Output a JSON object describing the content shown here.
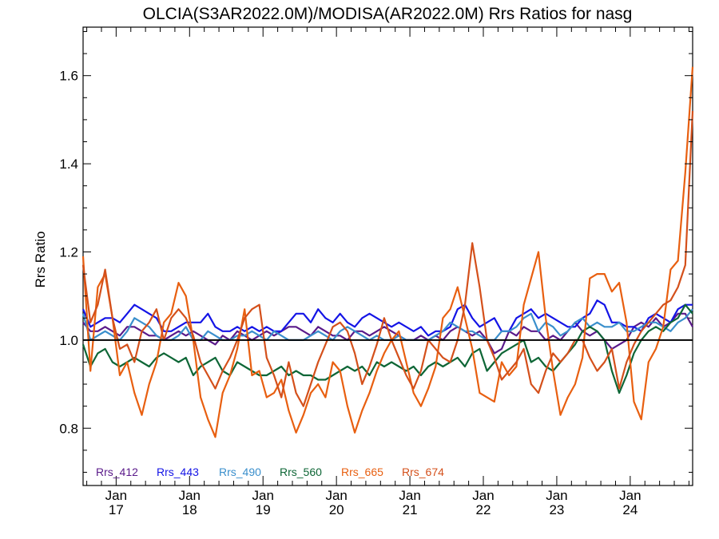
{
  "chart_data": {
    "type": "line",
    "title": "OLCIA(S3AR2022.0M)/MODISA(AR2022.0M)  Rrs Ratios for nasg",
    "xlabel": "",
    "ylabel": "Rrs Ratio",
    "xlim": [
      16.55,
      24.85
    ],
    "ylim": [
      0.67,
      1.71
    ],
    "yticks": [
      0.8,
      1.0,
      1.2,
      1.4,
      1.6
    ],
    "ytick_labels": [
      "0.8",
      "1.0",
      "1.2",
      "1.4",
      "1.6"
    ],
    "xticks": [
      {
        "value": 17,
        "month": "Jan",
        "day": "17"
      },
      {
        "value": 18,
        "month": "Jan",
        "day": "18"
      },
      {
        "value": 19,
        "month": "Jan",
        "day": "19"
      },
      {
        "value": 20,
        "month": "Jan",
        "day": "20"
      },
      {
        "value": 21,
        "month": "Jan",
        "day": "21"
      },
      {
        "value": 22,
        "month": "Jan",
        "day": "22"
      },
      {
        "value": 23,
        "month": "Jan",
        "day": "23"
      },
      {
        "value": 24,
        "month": "Jan",
        "day": "24"
      }
    ],
    "reference_line": 1.0,
    "grid": false,
    "legend_position": "bottom-left inside",
    "x": [
      16.55,
      16.65,
      16.75,
      16.85,
      16.95,
      17.05,
      17.15,
      17.25,
      17.35,
      17.45,
      17.55,
      17.65,
      17.75,
      17.85,
      17.95,
      18.05,
      18.15,
      18.25,
      18.35,
      18.45,
      18.55,
      18.65,
      18.75,
      18.85,
      18.95,
      19.05,
      19.15,
      19.25,
      19.35,
      19.45,
      19.55,
      19.65,
      19.75,
      19.85,
      19.95,
      20.05,
      20.15,
      20.25,
      20.35,
      20.45,
      20.55,
      20.65,
      20.75,
      20.85,
      20.95,
      21.05,
      21.15,
      21.25,
      21.35,
      21.45,
      21.55,
      21.65,
      21.75,
      21.85,
      21.95,
      22.05,
      22.15,
      22.25,
      22.35,
      22.45,
      22.55,
      22.65,
      22.75,
      22.85,
      22.95,
      23.05,
      23.15,
      23.25,
      23.35,
      23.45,
      23.55,
      23.65,
      23.75,
      23.85,
      23.95,
      24.05,
      24.15,
      24.25,
      24.35,
      24.45,
      24.55,
      24.65,
      24.75,
      24.85
    ],
    "series": [
      {
        "name": "Rrs_412",
        "color": "#5a1a8a",
        "values": [
          1.04,
          1.02,
          1.02,
          1.03,
          1.02,
          1.01,
          1.03,
          1.03,
          1.02,
          1.01,
          1.01,
          1.0,
          1.01,
          1.02,
          1.01,
          1.02,
          1.01,
          1.0,
          0.99,
          1.01,
          1.0,
          1.02,
          1.01,
          1.0,
          1.01,
          1.02,
          1.01,
          1.02,
          1.03,
          1.03,
          1.02,
          1.01,
          1.03,
          1.02,
          1.01,
          1.01,
          1.0,
          1.02,
          1.02,
          1.01,
          1.02,
          1.03,
          1.02,
          1.01,
          1.0,
          1.0,
          1.01,
          1.0,
          1.01,
          1.0,
          1.02,
          1.03,
          1.02,
          1.01,
          1.02,
          1.0,
          0.97,
          0.98,
          1.02,
          1.01,
          1.03,
          1.02,
          1.02,
          1.0,
          1.01,
          1.0,
          1.02,
          1.04,
          1.02,
          1.01,
          1.02,
          1.0,
          0.98,
          0.99,
          1.0,
          1.03,
          1.04,
          1.03,
          1.05,
          1.03,
          1.04,
          1.06,
          1.06,
          1.03
        ]
      },
      {
        "name": "Rrs_443",
        "color": "#1414e6",
        "values": [
          1.07,
          1.03,
          1.04,
          1.05,
          1.05,
          1.04,
          1.06,
          1.08,
          1.07,
          1.06,
          1.05,
          1.02,
          1.02,
          1.03,
          1.04,
          1.04,
          1.04,
          1.06,
          1.03,
          1.02,
          1.02,
          1.03,
          1.02,
          1.03,
          1.02,
          1.03,
          1.02,
          1.02,
          1.04,
          1.06,
          1.06,
          1.04,
          1.07,
          1.05,
          1.04,
          1.06,
          1.04,
          1.03,
          1.05,
          1.06,
          1.05,
          1.04,
          1.03,
          1.04,
          1.03,
          1.02,
          1.03,
          1.01,
          1.02,
          1.02,
          1.03,
          1.07,
          1.08,
          1.05,
          1.03,
          1.04,
          1.05,
          1.02,
          1.02,
          1.05,
          1.06,
          1.07,
          1.05,
          1.06,
          1.05,
          1.04,
          1.03,
          1.03,
          1.05,
          1.06,
          1.09,
          1.08,
          1.04,
          1.04,
          1.03,
          1.03,
          1.02,
          1.05,
          1.06,
          1.05,
          1.04,
          1.07,
          1.08,
          1.08
        ]
      },
      {
        "name": "Rrs_490",
        "color": "#3a8fcc",
        "values": [
          1.06,
          1.0,
          1.01,
          1.02,
          1.01,
          1.0,
          1.02,
          1.05,
          1.04,
          1.03,
          1.01,
          1.0,
          1.0,
          1.01,
          1.03,
          1.0,
          1.0,
          1.02,
          1.01,
          1.0,
          1.0,
          1.01,
          1.01,
          1.02,
          1.01,
          1.0,
          1.02,
          1.01,
          1.0,
          1.0,
          1.0,
          1.01,
          1.02,
          1.01,
          1.0,
          1.02,
          1.03,
          1.02,
          1.01,
          1.0,
          1.01,
          1.0,
          1.0,
          1.01,
          1.0,
          1.0,
          1.0,
          1.0,
          1.01,
          1.02,
          1.04,
          1.03,
          1.02,
          1.02,
          1.01,
          1.0,
          1.0,
          1.02,
          1.02,
          1.03,
          1.05,
          1.06,
          1.02,
          1.04,
          1.03,
          1.01,
          1.02,
          1.04,
          1.05,
          1.03,
          1.04,
          1.03,
          1.03,
          1.04,
          1.02,
          1.02,
          1.03,
          1.04,
          1.04,
          1.03,
          1.02,
          1.04,
          1.05,
          1.07
        ]
      },
      {
        "name": "Rrs_560",
        "color": "#0e6636",
        "values": [
          0.99,
          0.94,
          0.97,
          0.98,
          0.95,
          0.94,
          0.95,
          0.96,
          0.95,
          0.94,
          0.96,
          0.97,
          0.96,
          0.95,
          0.96,
          0.92,
          0.94,
          0.95,
          0.96,
          0.93,
          0.92,
          0.95,
          0.94,
          0.93,
          0.92,
          0.92,
          0.93,
          0.94,
          0.92,
          0.93,
          0.92,
          0.92,
          0.91,
          0.91,
          0.92,
          0.93,
          0.94,
          0.93,
          0.94,
          0.92,
          0.95,
          0.94,
          0.95,
          0.94,
          0.93,
          0.94,
          0.92,
          0.94,
          0.95,
          0.94,
          0.95,
          0.96,
          0.94,
          0.97,
          0.98,
          0.93,
          0.95,
          0.97,
          0.98,
          0.99,
          1.0,
          0.95,
          0.96,
          0.94,
          0.93,
          0.95,
          0.97,
          0.99,
          1.02,
          1.03,
          1.02,
          1.0,
          0.93,
          0.88,
          0.92,
          0.97,
          1.0,
          1.02,
          1.03,
          1.02,
          1.04,
          1.05,
          1.08,
          1.06
        ]
      },
      {
        "name": "Rrs_665",
        "color": "#e85f10",
        "values": [
          1.19,
          0.93,
          1.12,
          1.15,
          1.05,
          0.92,
          0.95,
          0.88,
          0.83,
          0.9,
          0.95,
          1.04,
          1.06,
          1.13,
          1.1,
          1.0,
          0.87,
          0.82,
          0.78,
          0.88,
          0.92,
          0.98,
          1.07,
          0.92,
          0.93,
          0.87,
          0.88,
          0.91,
          0.84,
          0.79,
          0.83,
          0.88,
          0.9,
          0.87,
          0.95,
          0.93,
          0.85,
          0.79,
          0.84,
          0.88,
          0.93,
          0.97,
          1.0,
          1.02,
          0.95,
          0.88,
          0.85,
          0.89,
          0.94,
          1.05,
          1.07,
          1.12,
          1.05,
          0.98,
          0.88,
          0.87,
          0.86,
          0.95,
          0.92,
          0.94,
          1.08,
          1.14,
          1.2,
          1.05,
          0.93,
          0.83,
          0.87,
          0.9,
          0.96,
          1.14,
          1.15,
          1.15,
          1.11,
          1.13,
          1.04,
          0.86,
          0.82,
          0.95,
          0.98,
          1.03,
          1.16,
          1.18,
          1.38,
          1.62
        ]
      },
      {
        "name": "Rrs_674",
        "color": "#d4501b",
        "values": [
          1.17,
          1.04,
          1.08,
          1.16,
          1.05,
          0.98,
          0.99,
          0.95,
          1.02,
          1.04,
          1.07,
          1.0,
          1.05,
          1.07,
          1.05,
          1.01,
          0.95,
          0.92,
          0.89,
          0.93,
          0.96,
          1.0,
          1.05,
          1.07,
          1.08,
          0.96,
          0.92,
          0.87,
          0.95,
          0.88,
          0.85,
          0.9,
          0.95,
          0.99,
          1.03,
          1.04,
          1.02,
          0.97,
          0.9,
          0.94,
          0.99,
          1.05,
          1.0,
          0.96,
          0.92,
          0.89,
          0.93,
          1.0,
          0.98,
          0.96,
          0.95,
          1.0,
          1.08,
          1.22,
          1.12,
          1.0,
          0.96,
          0.91,
          0.93,
          0.95,
          0.98,
          0.9,
          0.88,
          0.93,
          0.97,
          0.95,
          0.97,
          1.0,
          1.0,
          0.96,
          0.93,
          0.95,
          0.98,
          0.89,
          0.95,
          0.99,
          1.02,
          1.04,
          1.06,
          1.08,
          1.09,
          1.12,
          1.17,
          1.52
        ]
      }
    ]
  }
}
